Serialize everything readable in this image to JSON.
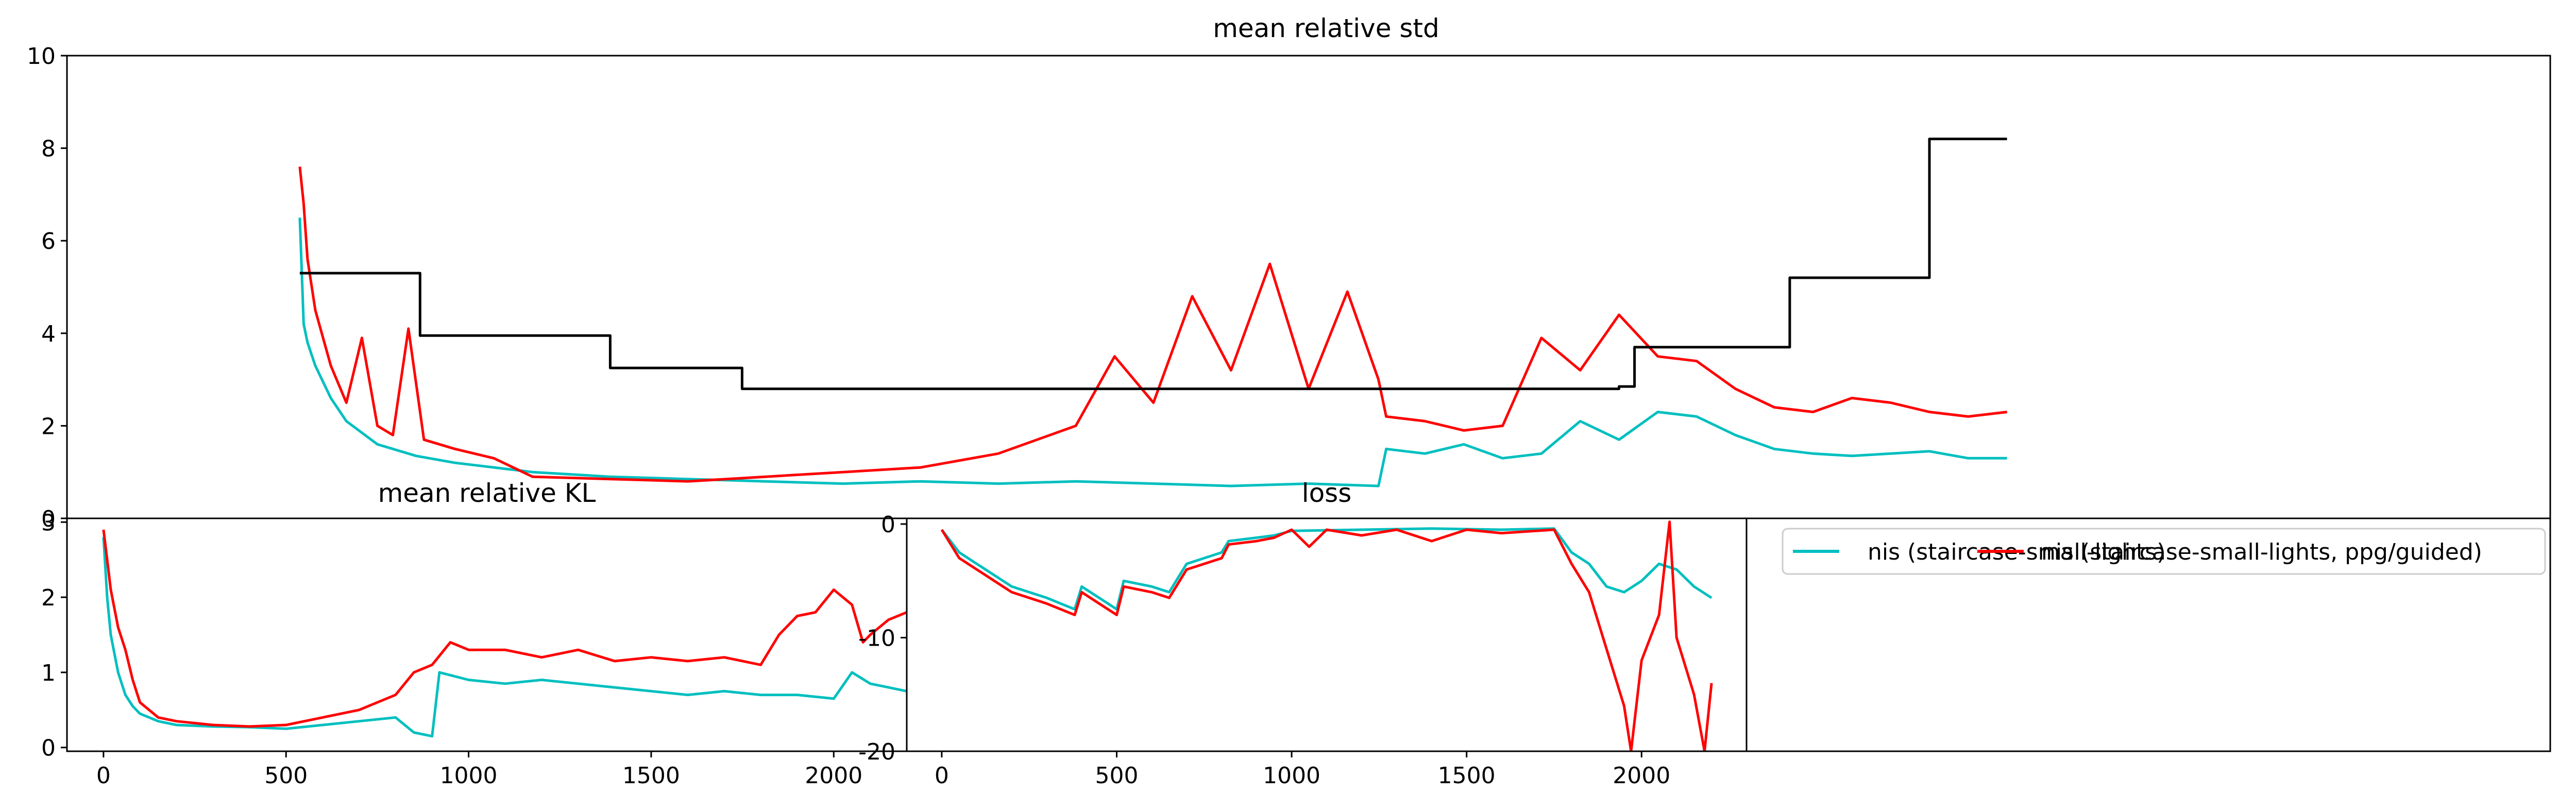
{
  "colors": {
    "cyan": "#00bfbf",
    "red": "#ff0000",
    "black": "#000000"
  },
  "legend": {
    "entries": [
      {
        "label": "nis (staircase-small-lights)",
        "color": "#00bfbf"
      },
      {
        "label": "nis (staircase-small-lights, ppg/guided)",
        "color": "#ff0000"
      }
    ]
  },
  "chart_data": [
    {
      "type": "line",
      "title": "mean relative std",
      "xlabel": "",
      "ylabel": "",
      "xlim": [
        0,
        2200
      ],
      "ylim": [
        0,
        10
      ],
      "yticks": [
        0,
        2,
        4,
        6,
        8,
        10
      ],
      "x_tick_labels_shown": false,
      "grid": false,
      "series": [
        {
          "name": "nis (staircase-small-lights)",
          "color": "#00bfbf",
          "points": [
            [
              0,
              6.5
            ],
            [
              5,
              4.2
            ],
            [
              10,
              3.8
            ],
            [
              20,
              3.3
            ],
            [
              40,
              2.6
            ],
            [
              60,
              2.1
            ],
            [
              100,
              1.6
            ],
            [
              150,
              1.35
            ],
            [
              200,
              1.2
            ],
            [
              300,
              1.0
            ],
            [
              400,
              0.9
            ],
            [
              500,
              0.85
            ],
            [
              600,
              0.8
            ],
            [
              700,
              0.75
            ],
            [
              800,
              0.8
            ],
            [
              900,
              0.75
            ],
            [
              1000,
              0.8
            ],
            [
              1100,
              0.75
            ],
            [
              1200,
              0.7
            ],
            [
              1300,
              0.75
            ],
            [
              1390,
              0.7
            ],
            [
              1400,
              1.5
            ],
            [
              1450,
              1.4
            ],
            [
              1500,
              1.6
            ],
            [
              1550,
              1.3
            ],
            [
              1600,
              1.4
            ],
            [
              1650,
              2.1
            ],
            [
              1700,
              1.7
            ],
            [
              1750,
              2.3
            ],
            [
              1800,
              2.2
            ],
            [
              1850,
              1.8
            ],
            [
              1900,
              1.5
            ],
            [
              1950,
              1.4
            ],
            [
              2000,
              1.35
            ],
            [
              2050,
              1.4
            ],
            [
              2100,
              1.45
            ],
            [
              2150,
              1.3
            ],
            [
              2200,
              1.3
            ]
          ]
        },
        {
          "name": "nis (staircase-small-lights, ppg/guided)",
          "color": "#ff0000",
          "points": [
            [
              0,
              7.6
            ],
            [
              5,
              6.8
            ],
            [
              10,
              5.6
            ],
            [
              20,
              4.5
            ],
            [
              40,
              3.3
            ],
            [
              60,
              2.5
            ],
            [
              80,
              3.9
            ],
            [
              100,
              2.0
            ],
            [
              120,
              1.8
            ],
            [
              140,
              4.1
            ],
            [
              160,
              1.7
            ],
            [
              200,
              1.5
            ],
            [
              250,
              1.3
            ],
            [
              300,
              0.9
            ],
            [
              400,
              0.85
            ],
            [
              500,
              0.8
            ],
            [
              600,
              0.9
            ],
            [
              700,
              1.0
            ],
            [
              800,
              1.1
            ],
            [
              900,
              1.4
            ],
            [
              1000,
              2.0
            ],
            [
              1050,
              3.5
            ],
            [
              1100,
              2.5
            ],
            [
              1150,
              4.8
            ],
            [
              1200,
              3.2
            ],
            [
              1250,
              5.5
            ],
            [
              1300,
              2.8
            ],
            [
              1350,
              4.9
            ],
            [
              1390,
              3.0
            ],
            [
              1400,
              2.2
            ],
            [
              1450,
              2.1
            ],
            [
              1500,
              1.9
            ],
            [
              1550,
              2.0
            ],
            [
              1600,
              3.9
            ],
            [
              1650,
              3.2
            ],
            [
              1700,
              4.4
            ],
            [
              1750,
              3.5
            ],
            [
              1800,
              3.4
            ],
            [
              1850,
              2.8
            ],
            [
              1900,
              2.4
            ],
            [
              1950,
              2.3
            ],
            [
              2000,
              2.6
            ],
            [
              2050,
              2.5
            ],
            [
              2100,
              2.3
            ],
            [
              2150,
              2.2
            ],
            [
              2200,
              2.3
            ]
          ]
        },
        {
          "name": "",
          "color": "#000000",
          "step": true,
          "points": [
            [
              0,
              5.3
            ],
            [
              155,
              5.3
            ],
            [
              155,
              3.95
            ],
            [
              400,
              3.95
            ],
            [
              400,
              3.25
            ],
            [
              570,
              3.25
            ],
            [
              570,
              2.8
            ],
            [
              1700,
              2.8
            ],
            [
              1700,
              2.85
            ],
            [
              1720,
              2.85
            ],
            [
              1720,
              3.7
            ],
            [
              1920,
              3.7
            ],
            [
              1920,
              5.2
            ],
            [
              2100,
              5.2
            ],
            [
              2100,
              8.2
            ],
            [
              2200,
              8.2
            ]
          ]
        }
      ]
    },
    {
      "type": "line",
      "title": "mean relative KL",
      "xlabel": "",
      "ylabel": "",
      "xlim": [
        -100,
        2200
      ],
      "ylim": [
        -0.05,
        3.05
      ],
      "yticks": [
        0,
        1,
        2,
        3
      ],
      "xticks": [
        0,
        500,
        1000,
        1500,
        2000
      ],
      "grid": false,
      "series": [
        {
          "name": "nis (staircase-small-lights)",
          "color": "#00bfbf",
          "points": [
            [
              0,
              2.8
            ],
            [
              10,
              2.0
            ],
            [
              20,
              1.5
            ],
            [
              40,
              1.0
            ],
            [
              60,
              0.7
            ],
            [
              80,
              0.55
            ],
            [
              100,
              0.45
            ],
            [
              150,
              0.35
            ],
            [
              200,
              0.3
            ],
            [
              300,
              0.28
            ],
            [
              400,
              0.27
            ],
            [
              500,
              0.25
            ],
            [
              600,
              0.3
            ],
            [
              700,
              0.35
            ],
            [
              800,
              0.4
            ],
            [
              850,
              0.2
            ],
            [
              900,
              0.15
            ],
            [
              920,
              1.0
            ],
            [
              1000,
              0.9
            ],
            [
              1100,
              0.85
            ],
            [
              1200,
              0.9
            ],
            [
              1300,
              0.85
            ],
            [
              1400,
              0.8
            ],
            [
              1500,
              0.75
            ],
            [
              1600,
              0.7
            ],
            [
              1700,
              0.75
            ],
            [
              1800,
              0.7
            ],
            [
              1900,
              0.7
            ],
            [
              2000,
              0.65
            ],
            [
              2050,
              1.0
            ],
            [
              2100,
              0.85
            ],
            [
              2150,
              0.8
            ],
            [
              2200,
              0.75
            ]
          ]
        },
        {
          "name": "nis (staircase-small-lights, ppg/guided)",
          "color": "#ff0000",
          "points": [
            [
              0,
              2.9
            ],
            [
              10,
              2.5
            ],
            [
              20,
              2.1
            ],
            [
              40,
              1.6
            ],
            [
              60,
              1.3
            ],
            [
              80,
              0.9
            ],
            [
              100,
              0.6
            ],
            [
              150,
              0.4
            ],
            [
              200,
              0.35
            ],
            [
              300,
              0.3
            ],
            [
              400,
              0.28
            ],
            [
              500,
              0.3
            ],
            [
              600,
              0.4
            ],
            [
              700,
              0.5
            ],
            [
              800,
              0.7
            ],
            [
              850,
              1.0
            ],
            [
              900,
              1.1
            ],
            [
              950,
              1.4
            ],
            [
              1000,
              1.3
            ],
            [
              1100,
              1.3
            ],
            [
              1200,
              1.2
            ],
            [
              1300,
              1.3
            ],
            [
              1400,
              1.15
            ],
            [
              1500,
              1.2
            ],
            [
              1600,
              1.15
            ],
            [
              1700,
              1.2
            ],
            [
              1800,
              1.1
            ],
            [
              1850,
              1.5
            ],
            [
              1900,
              1.75
            ],
            [
              1950,
              1.8
            ],
            [
              2000,
              2.1
            ],
            [
              2050,
              1.9
            ],
            [
              2080,
              1.4
            ],
            [
              2100,
              1.5
            ],
            [
              2150,
              1.7
            ],
            [
              2200,
              1.8
            ]
          ]
        }
      ]
    },
    {
      "type": "line",
      "title": "loss",
      "xlabel": "",
      "ylabel": "",
      "xlim": [
        -100,
        2300
      ],
      "ylim": [
        -20,
        0.5
      ],
      "yticks": [
        0,
        -10,
        -20
      ],
      "xticks": [
        0,
        500,
        1000,
        1500,
        2000
      ],
      "grid": false,
      "series": [
        {
          "name": "nis (staircase-small-lights)",
          "color": "#00bfbf",
          "points": [
            [
              0,
              -0.5
            ],
            [
              50,
              -2.5
            ],
            [
              100,
              -3.5
            ],
            [
              200,
              -5.5
            ],
            [
              300,
              -6.5
            ],
            [
              380,
              -7.5
            ],
            [
              400,
              -5.5
            ],
            [
              450,
              -6.5
            ],
            [
              500,
              -7.5
            ],
            [
              520,
              -5.0
            ],
            [
              600,
              -5.5
            ],
            [
              650,
              -6.0
            ],
            [
              700,
              -3.5
            ],
            [
              800,
              -2.5
            ],
            [
              820,
              -1.5
            ],
            [
              900,
              -1.2
            ],
            [
              950,
              -1.0
            ],
            [
              1000,
              -0.6
            ],
            [
              1200,
              -0.5
            ],
            [
              1400,
              -0.4
            ],
            [
              1600,
              -0.5
            ],
            [
              1750,
              -0.4
            ],
            [
              1800,
              -2.5
            ],
            [
              1850,
              -3.5
            ],
            [
              1900,
              -5.5
            ],
            [
              1950,
              -6.0
            ],
            [
              2000,
              -5.0
            ],
            [
              2050,
              -3.5
            ],
            [
              2100,
              -4.0
            ],
            [
              2150,
              -5.5
            ],
            [
              2200,
              -6.5
            ]
          ]
        },
        {
          "name": "nis (staircase-small-lights, ppg/guided)",
          "color": "#ff0000",
          "points": [
            [
              0,
              -0.5
            ],
            [
              50,
              -3.0
            ],
            [
              100,
              -4.0
            ],
            [
              200,
              -6.0
            ],
            [
              300,
              -7.0
            ],
            [
              380,
              -8.0
            ],
            [
              400,
              -6.0
            ],
            [
              450,
              -7.0
            ],
            [
              500,
              -8.0
            ],
            [
              520,
              -5.5
            ],
            [
              600,
              -6.0
            ],
            [
              650,
              -6.5
            ],
            [
              700,
              -4.0
            ],
            [
              800,
              -3.0
            ],
            [
              820,
              -1.8
            ],
            [
              900,
              -1.5
            ],
            [
              950,
              -1.2
            ],
            [
              1000,
              -0.5
            ],
            [
              1050,
              -2.0
            ],
            [
              1100,
              -0.5
            ],
            [
              1200,
              -1.0
            ],
            [
              1300,
              -0.5
            ],
            [
              1400,
              -1.5
            ],
            [
              1500,
              -0.5
            ],
            [
              1600,
              -0.8
            ],
            [
              1750,
              -0.5
            ],
            [
              1800,
              -3.5
            ],
            [
              1850,
              -6.0
            ],
            [
              1900,
              -11.0
            ],
            [
              1950,
              -16.0
            ],
            [
              1970,
              -20.0
            ],
            [
              2000,
              -12.0
            ],
            [
              2050,
              -8.0
            ],
            [
              2080,
              0.2
            ],
            [
              2100,
              -10.0
            ],
            [
              2150,
              -15.0
            ],
            [
              2180,
              -20.0
            ],
            [
              2200,
              -14.0
            ]
          ]
        }
      ]
    }
  ]
}
